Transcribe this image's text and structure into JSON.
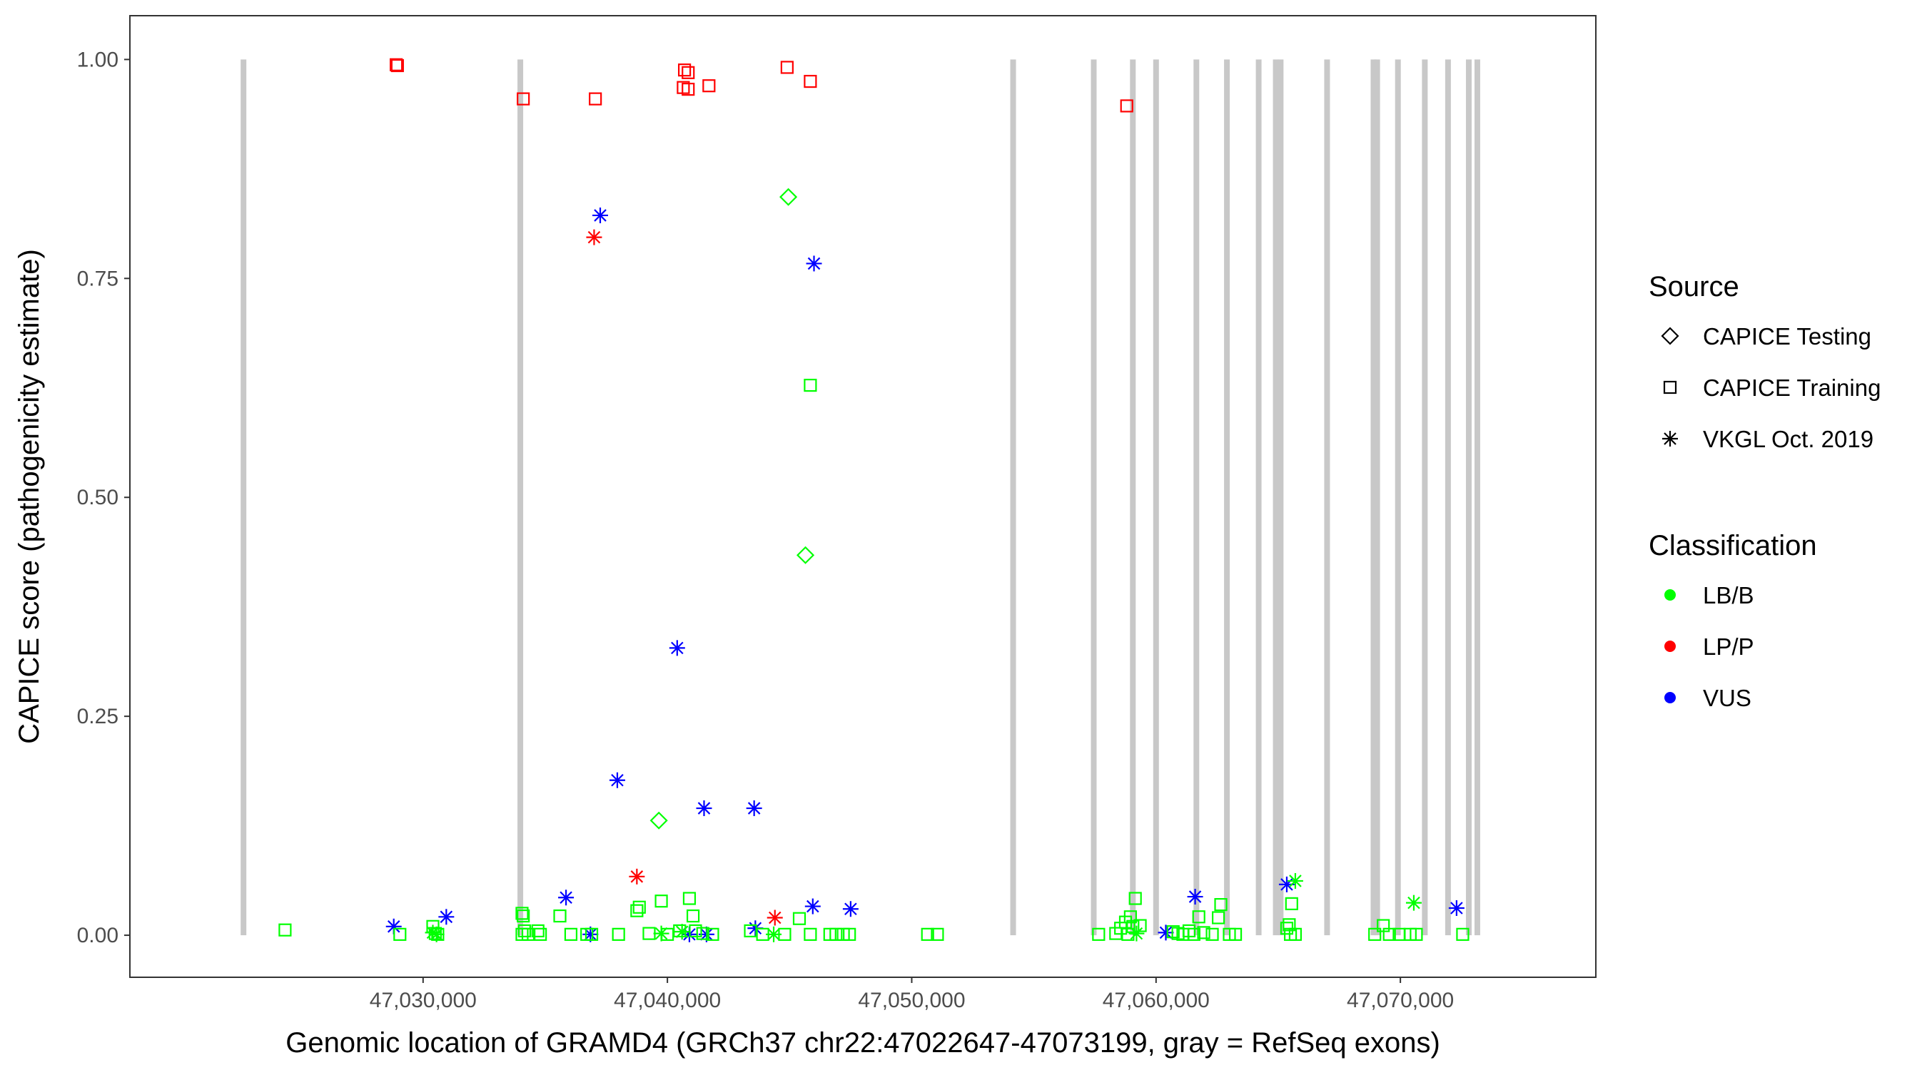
{
  "chart_data": {
    "type": "scatter",
    "title": "",
    "xlabel": "Genomic location of GRAMD4 (GRCh37 chr22:47022647-47073199, gray = RefSeq exons)",
    "ylabel": "CAPICE score (pathogenicity estimate)",
    "xlim": [
      47018000,
      47078000
    ],
    "ylim": [
      -0.048,
      1.05
    ],
    "x_ticks": [
      47030000,
      47040000,
      47050000,
      47060000,
      47070000
    ],
    "x_tick_labels": [
      "47,030,000",
      "47,040,000",
      "47,050,000",
      "47,060,000",
      "47,070,000"
    ],
    "y_ticks": [
      0,
      0.25,
      0.5,
      0.75,
      1.0
    ],
    "y_tick_labels": [
      "0.00",
      "0.25",
      "0.50",
      "0.75",
      "1.00"
    ],
    "grid": false,
    "exons": [
      47022650,
      47033980,
      47054150,
      47057450,
      47059050,
      47060000,
      47061650,
      47062900,
      47064200,
      47064900,
      47065100,
      47067000,
      47068900,
      47069050,
      47069900,
      47071000,
      47071950,
      47072800,
      47073150
    ],
    "legend": {
      "placement": "right",
      "source_title": "Source",
      "source_entries": [
        {
          "label": "CAPICE Testing",
          "shape": "diamond"
        },
        {
          "label": "CAPICE Training",
          "shape": "square"
        },
        {
          "label": "VKGL Oct. 2019",
          "shape": "star"
        }
      ],
      "class_title": "Classification",
      "class_entries": [
        {
          "label": "LB/B",
          "color": "#00ff00"
        },
        {
          "label": "LP/P",
          "color": "#ff0000"
        },
        {
          "label": "VUS",
          "color": "#0000ff"
        }
      ]
    },
    "series": [
      {
        "source": "CAPICE Training",
        "classification": "LP/P",
        "color": "#ff0000",
        "shape": "square",
        "points": [
          [
            47028900,
            0.994
          ],
          [
            47028950,
            0.993
          ],
          [
            47034100,
            0.955
          ],
          [
            47037050,
            0.955
          ],
          [
            47040700,
            0.988
          ],
          [
            47040850,
            0.985
          ],
          [
            47040650,
            0.968
          ],
          [
            47040850,
            0.966
          ],
          [
            47041700,
            0.97
          ],
          [
            47044900,
            0.991
          ],
          [
            47045850,
            0.975
          ],
          [
            47058800,
            0.947
          ]
        ]
      },
      {
        "source": "VKGL Oct. 2019",
        "classification": "VUS",
        "color": "#0000ff",
        "shape": "star",
        "points": [
          [
            47037250,
            0.822
          ],
          [
            47046000,
            0.767
          ],
          [
            47040400,
            0.328
          ],
          [
            47037950,
            0.177
          ],
          [
            47041500,
            0.145
          ],
          [
            47043550,
            0.145
          ],
          [
            47035850,
            0.043
          ],
          [
            47045950,
            0.033
          ],
          [
            47047500,
            0.03
          ],
          [
            47030950,
            0.021
          ],
          [
            47028800,
            0.01
          ],
          [
            47036850,
            0.001
          ],
          [
            47040900,
            0.001
          ],
          [
            47041600,
            0.001
          ],
          [
            47043600,
            0.008
          ],
          [
            47060400,
            0.003
          ],
          [
            47061600,
            0.044
          ],
          [
            47065350,
            0.058
          ],
          [
            47072300,
            0.031
          ]
        ]
      },
      {
        "source": "VKGL Oct. 2019",
        "classification": "LP/P",
        "color": "#ff0000",
        "shape": "star",
        "points": [
          [
            47037000,
            0.797
          ],
          [
            47038750,
            0.067
          ],
          [
            47044400,
            0.02
          ]
        ]
      },
      {
        "source": "CAPICE Testing",
        "classification": "LB/B",
        "color": "#00ff00",
        "shape": "diamond",
        "points": [
          [
            47044950,
            0.843
          ],
          [
            47045650,
            0.434
          ],
          [
            47039650,
            0.131
          ]
        ]
      },
      {
        "source": "VKGL Oct. 2019",
        "classification": "LB/B",
        "color": "#00ff00",
        "shape": "star",
        "points": [
          [
            47030400,
            0.003
          ],
          [
            47030550,
            0.001
          ],
          [
            47039750,
            0.002
          ],
          [
            47040600,
            0.004
          ],
          [
            47044350,
            0.001
          ],
          [
            47059200,
            0.002
          ],
          [
            47065700,
            0.062
          ],
          [
            47070550,
            0.037
          ]
        ]
      },
      {
        "source": "CAPICE Training",
        "classification": "LB/B",
        "color": "#00ff00",
        "shape": "square",
        "points": [
          [
            47045850,
            0.628
          ],
          [
            47024350,
            0.006
          ],
          [
            47029050,
            0.001
          ],
          [
            47030400,
            0.01
          ],
          [
            47030500,
            0.002
          ],
          [
            47030600,
            0.001
          ],
          [
            47034050,
            0.025
          ],
          [
            47034100,
            0.022
          ],
          [
            47034150,
            0.005
          ],
          [
            47034050,
            0.001
          ],
          [
            47034300,
            0.001
          ],
          [
            47034700,
            0.005
          ],
          [
            47034800,
            0.001
          ],
          [
            47035600,
            0.022
          ],
          [
            47036050,
            0.001
          ],
          [
            47036700,
            0.001
          ],
          [
            47036900,
            0.001
          ],
          [
            47038000,
            0.001
          ],
          [
            47038750,
            0.028
          ],
          [
            47038850,
            0.032
          ],
          [
            47039250,
            0.002
          ],
          [
            47039750,
            0.039
          ],
          [
            47040000,
            0.001
          ],
          [
            47040500,
            0.005
          ],
          [
            47040900,
            0.042
          ],
          [
            47041050,
            0.022
          ],
          [
            47041150,
            0.005
          ],
          [
            47041450,
            0.002
          ],
          [
            47041850,
            0.001
          ],
          [
            47043400,
            0.005
          ],
          [
            47043900,
            0.001
          ],
          [
            47044800,
            0.001
          ],
          [
            47045400,
            0.019
          ],
          [
            47045850,
            0.001
          ],
          [
            47046650,
            0.001
          ],
          [
            47046900,
            0.001
          ],
          [
            47047200,
            0.001
          ],
          [
            47047450,
            0.001
          ],
          [
            47050650,
            0.001
          ],
          [
            47051050,
            0.001
          ],
          [
            47057650,
            0.001
          ],
          [
            47058350,
            0.002
          ],
          [
            47058550,
            0.008
          ],
          [
            47058750,
            0.015
          ],
          [
            47058850,
            0.001
          ],
          [
            47058950,
            0.021
          ],
          [
            47059050,
            0.01
          ],
          [
            47059150,
            0.042
          ],
          [
            47059350,
            0.011
          ],
          [
            47060700,
            0.004
          ],
          [
            47060900,
            0.002
          ],
          [
            47061100,
            0.001
          ],
          [
            47061350,
            0.005
          ],
          [
            47061550,
            0.001
          ],
          [
            47061750,
            0.021
          ],
          [
            47061950,
            0.003
          ],
          [
            47062300,
            0.001
          ],
          [
            47062550,
            0.02
          ],
          [
            47062650,
            0.035
          ],
          [
            47063000,
            0.001
          ],
          [
            47063250,
            0.001
          ],
          [
            47065350,
            0.008
          ],
          [
            47065450,
            0.012
          ],
          [
            47065500,
            0.001
          ],
          [
            47065550,
            0.036
          ],
          [
            47065700,
            0.001
          ],
          [
            47068950,
            0.001
          ],
          [
            47069300,
            0.011
          ],
          [
            47069550,
            0.001
          ],
          [
            47069950,
            0.001
          ],
          [
            47070400,
            0.001
          ],
          [
            47070650,
            0.001
          ],
          [
            47072550,
            0.001
          ]
        ]
      }
    ]
  }
}
